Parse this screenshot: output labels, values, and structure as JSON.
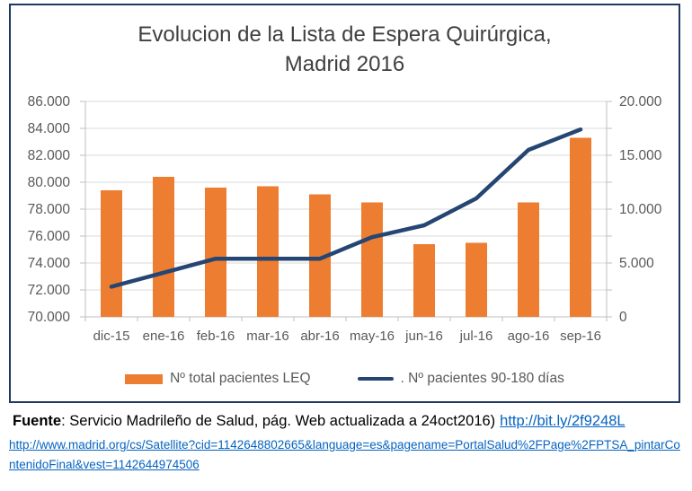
{
  "chart": {
    "title_line1": "Evolucion de la Lista de Espera Quirúrgica,",
    "title_line2": "Madrid 2016",
    "legend": {
      "bar_label": "Nº total pacientes LEQ",
      "line_label": ". Nº pacientes 90-180 días"
    }
  },
  "chart_data": {
    "type": "bar",
    "subtype": "combo-bar-line-dual-axis",
    "title": "Evolucion de la Lista de Espera Quirúrgica, Madrid 2016",
    "categories": [
      "dic-15",
      "ene-16",
      "feb-16",
      "mar-16",
      "abr-16",
      "may-16",
      "jun-16",
      "jul-16",
      "ago-16",
      "sep-16"
    ],
    "series": [
      {
        "name": "Nº total pacientes LEQ",
        "type": "bar",
        "axis": "left",
        "color": "#ED7D31",
        "values": [
          79400,
          80400,
          79600,
          79700,
          79100,
          78500,
          75400,
          75500,
          78500,
          83300
        ]
      },
      {
        "name": "Nº pacientes 90-180 días",
        "type": "line",
        "axis": "right",
        "color": "#254572",
        "values": [
          2800,
          4100,
          5400,
          5400,
          5400,
          7400,
          8500,
          11000,
          15500,
          17400
        ]
      }
    ],
    "left_axis": {
      "min": 70000,
      "max": 86000,
      "step": 2000,
      "ticks": [
        {
          "value": 86000,
          "label": "86.000"
        },
        {
          "value": 84000,
          "label": "84.000"
        },
        {
          "value": 82000,
          "label": "82.000"
        },
        {
          "value": 80000,
          "label": "80.000"
        },
        {
          "value": 78000,
          "label": "78.000"
        },
        {
          "value": 76000,
          "label": "76.000"
        },
        {
          "value": 74000,
          "label": "74.000"
        },
        {
          "value": 72000,
          "label": "72.000"
        },
        {
          "value": 70000,
          "label": "70.000"
        }
      ]
    },
    "right_axis": {
      "min": 0,
      "max": 20000,
      "step": 5000,
      "minor_step": 2500,
      "ticks": [
        {
          "value": 20000,
          "label": "20.000"
        },
        {
          "value": 15000,
          "label": "15.000"
        },
        {
          "value": 10000,
          "label": "10.000"
        },
        {
          "value": 5000,
          "label": "5.000"
        },
        {
          "value": 0,
          "label": "0"
        }
      ]
    },
    "grid": true,
    "legend_position": "bottom",
    "colors": {
      "grid": "#D9D9D9",
      "axis": "#BFBFBF",
      "tick_label": "#595959",
      "title": "#3F3F3F",
      "box_border": "#1F3864",
      "link": "#0563C1"
    }
  },
  "footer": {
    "fuente_label": "Fuente",
    "fuente_text": ": Servicio Madrileño de Salud, pág. Web actualizada a 24oct2016)",
    "short_link": "http://bit.ly/2f9248L",
    "long_link": "http://www.madrid.org/cs/Satellite?cid=1142648802665&language=es&pagename=PortalSalud%2FPage%2FPTSA_pintarContenidoFinal&vest=1142644974506"
  }
}
